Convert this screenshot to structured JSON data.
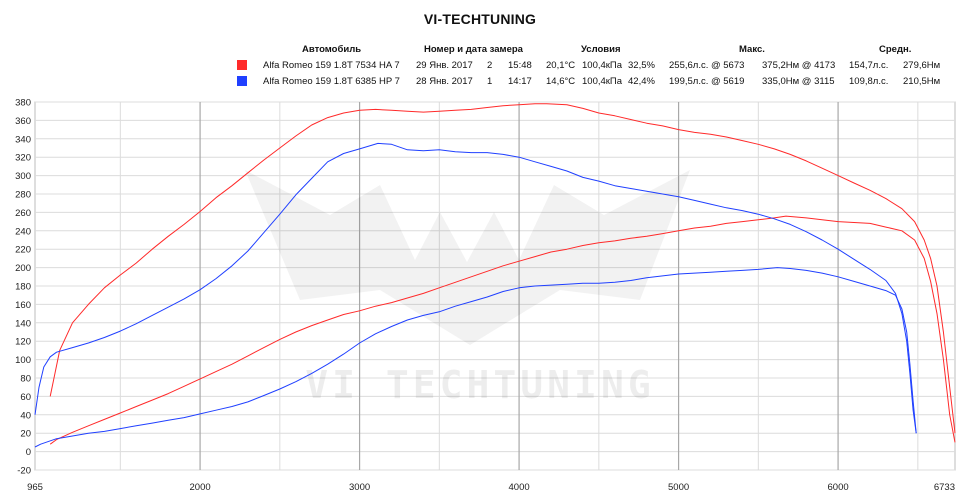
{
  "title": "VI-TECHTUNING",
  "watermark": "VI TECHTUNING",
  "legend_headers": {
    "car": "Автомобиль",
    "num_date": "Номер и дата замера",
    "conditions": "Условия",
    "max": "Макс.",
    "avg": "Средн."
  },
  "legend_rows": [
    {
      "color": "#ff2a2a",
      "car": "Alfa Romeo 159 1.8T 7534 HA 7",
      "date": "29 Янв. 2017",
      "num": "2",
      "time": "15:48",
      "temp": "20,1°C",
      "pressure": "100,4кПа",
      "humidity": "32,5%",
      "max_power": "255,6л.с. @ 5673",
      "max_torque": "375,2Нм @ 4173",
      "avg_power": "154,7л.с.",
      "avg_torque": "279,6Нм"
    },
    {
      "color": "#2040ff",
      "car": "Alfa Romeo 159 1.8T 6385 HP 7",
      "date": "28 Янв. 2017",
      "num": "1",
      "time": "14:17",
      "temp": "14,6°C",
      "pressure": "100,4кПа",
      "humidity": "42,4%",
      "max_power": "199,5л.с. @ 5619",
      "max_torque": "335,0Нм @ 3115",
      "avg_power": "109,8л.с.",
      "avg_torque": "210,5Нм"
    }
  ],
  "chart_data": {
    "type": "line",
    "xlim": [
      965,
      6733
    ],
    "ylim": [
      -20,
      380
    ],
    "x_ticks": [
      965,
      2000,
      3000,
      4000,
      5000,
      6000,
      6733
    ],
    "y_ticks": [
      -20,
      0,
      20,
      40,
      60,
      80,
      100,
      120,
      140,
      160,
      180,
      200,
      220,
      240,
      260,
      280,
      300,
      320,
      340,
      360,
      380
    ],
    "grid": true,
    "series": [
      {
        "color": "#ff2a2a",
        "x": [
          1060,
          1120,
          1200,
          1300,
          1400,
          1500,
          1600,
          1700,
          1800,
          1900,
          2000,
          2100,
          2200,
          2300,
          2400,
          2500,
          2600,
          2700,
          2800,
          2900,
          3000,
          3100,
          3200,
          3300,
          3400,
          3500,
          3600,
          3700,
          3800,
          3900,
          4000,
          4100,
          4173,
          4300,
          4400,
          4500,
          4600,
          4700,
          4800,
          4900,
          5000,
          5100,
          5200,
          5300,
          5400,
          5500,
          5600,
          5700,
          5800,
          5900,
          6000,
          6100,
          6200,
          6300,
          6400,
          6480,
          6540,
          6580,
          6620,
          6660,
          6700,
          6733
        ],
        "y": [
          60,
          110,
          140,
          160,
          178,
          192,
          205,
          220,
          234,
          247,
          261,
          276,
          289,
          303,
          317,
          330,
          343,
          355,
          363,
          368,
          371,
          372,
          371,
          370,
          369,
          370,
          371,
          372,
          374,
          376,
          377,
          378,
          378,
          377,
          373,
          368,
          365,
          361,
          357,
          354,
          350,
          347,
          345,
          342,
          338,
          334,
          329,
          323,
          316,
          308,
          300,
          292,
          284,
          275,
          264,
          250,
          230,
          210,
          180,
          130,
          70,
          20
        ]
      },
      {
        "color": "#ff2a2a",
        "x": [
          1060,
          1100,
          1200,
          1300,
          1400,
          1500,
          1600,
          1700,
          1800,
          1900,
          2000,
          2100,
          2200,
          2300,
          2400,
          2500,
          2600,
          2700,
          2800,
          2900,
          3000,
          3100,
          3200,
          3300,
          3400,
          3500,
          3600,
          3700,
          3800,
          3900,
          4000,
          4100,
          4200,
          4300,
          4400,
          4500,
          4600,
          4700,
          4800,
          4900,
          5000,
          5100,
          5200,
          5300,
          5400,
          5500,
          5600,
          5673,
          5800,
          5900,
          6000,
          6100,
          6200,
          6300,
          6400,
          6480,
          6540,
          6580,
          6620,
          6660,
          6700,
          6733
        ],
        "y": [
          8,
          13,
          21,
          28,
          35,
          42,
          49,
          56,
          63,
          71,
          79,
          87,
          95,
          104,
          113,
          122,
          130,
          137,
          143,
          149,
          153,
          158,
          162,
          167,
          172,
          178,
          184,
          190,
          196,
          202,
          207,
          212,
          217,
          220,
          224,
          227,
          229,
          232,
          234,
          237,
          240,
          243,
          245,
          248,
          250,
          252,
          254,
          256,
          254,
          252,
          250,
          249,
          248,
          244,
          240,
          230,
          210,
          185,
          150,
          100,
          40,
          10
        ]
      },
      {
        "color": "#2040ff",
        "x": [
          965,
          990,
          1020,
          1060,
          1100,
          1200,
          1300,
          1400,
          1500,
          1600,
          1700,
          1800,
          1900,
          2000,
          2100,
          2200,
          2300,
          2400,
          2500,
          2600,
          2700,
          2800,
          2900,
          3000,
          3115,
          3200,
          3300,
          3400,
          3500,
          3600,
          3700,
          3800,
          3900,
          4000,
          4100,
          4200,
          4300,
          4400,
          4500,
          4600,
          4700,
          4800,
          4900,
          5000,
          5100,
          5200,
          5300,
          5400,
          5500,
          5600,
          5700,
          5800,
          5900,
          6000,
          6100,
          6200,
          6300,
          6360,
          6400,
          6430,
          6450,
          6470,
          6490
        ],
        "y": [
          40,
          70,
          92,
          103,
          108,
          113,
          118,
          124,
          131,
          139,
          148,
          157,
          166,
          176,
          188,
          202,
          218,
          238,
          258,
          279,
          297,
          315,
          324,
          329,
          335,
          334,
          328,
          327,
          328,
          326,
          325,
          325,
          323,
          320,
          315,
          310,
          305,
          298,
          294,
          289,
          286,
          283,
          280,
          277,
          273,
          269,
          265,
          262,
          258,
          253,
          247,
          239,
          230,
          220,
          209,
          198,
          186,
          172,
          150,
          120,
          85,
          45,
          20
        ]
      },
      {
        "color": "#2040ff",
        "x": [
          965,
          1000,
          1100,
          1200,
          1300,
          1400,
          1500,
          1600,
          1700,
          1800,
          1900,
          2000,
          2100,
          2200,
          2300,
          2400,
          2500,
          2600,
          2700,
          2800,
          2900,
          3000,
          3100,
          3200,
          3300,
          3400,
          3500,
          3600,
          3700,
          3800,
          3900,
          4000,
          4100,
          4200,
          4300,
          4400,
          4500,
          4600,
          4700,
          4800,
          4900,
          5000,
          5100,
          5200,
          5300,
          5400,
          5500,
          5619,
          5700,
          5800,
          5900,
          6000,
          6100,
          6200,
          6300,
          6360,
          6400,
          6430,
          6450,
          6470,
          6490
        ],
        "y": [
          5,
          8,
          14,
          17,
          20,
          22,
          25,
          28,
          31,
          34,
          37,
          41,
          45,
          49,
          54,
          61,
          68,
          76,
          85,
          95,
          106,
          118,
          128,
          136,
          143,
          148,
          152,
          158,
          163,
          168,
          174,
          178,
          180,
          181,
          182,
          183,
          183,
          184,
          186,
          189,
          191,
          193,
          194,
          195,
          196,
          197,
          198,
          200,
          199,
          197,
          194,
          190,
          185,
          180,
          175,
          170,
          155,
          130,
          95,
          55,
          20
        ]
      }
    ]
  }
}
